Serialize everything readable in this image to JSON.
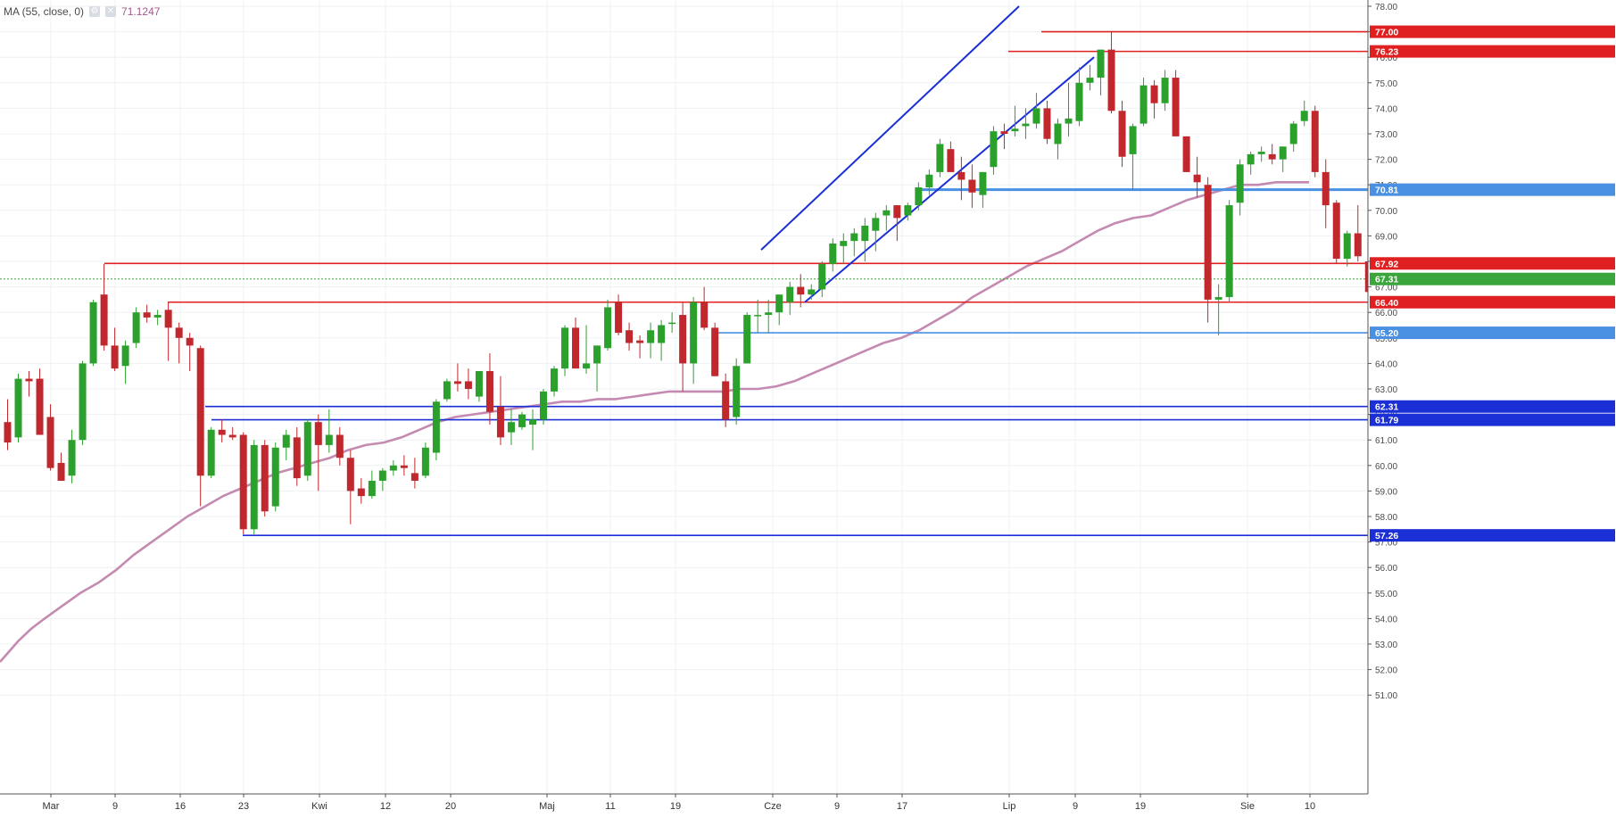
{
  "indicator": {
    "label": "MA (55, close, 0)",
    "value": "71.1247",
    "settings_icon": "gear-icon",
    "close_icon": "close-icon"
  },
  "colors": {
    "up": "#2ca02c",
    "down": "#c0282d",
    "ma": "#c48ab1",
    "red_level": "#e02020",
    "blue_level": "#1a2fd6",
    "light_blue": "#4a90e2",
    "grid": "#eef0f3",
    "dotted_price": "#3aa53a"
  },
  "chart_data": {
    "type": "candlestick",
    "title": "",
    "xlabel": "",
    "ylabel": "",
    "ylim": [
      51.0,
      78.5
    ],
    "y_ticks": [
      "51.00",
      "52.00",
      "53.00",
      "54.00",
      "55.00",
      "56.00",
      "57.00",
      "58.00",
      "59.00",
      "60.00",
      "61.00",
      "62.00",
      "63.00",
      "64.00",
      "65.00",
      "66.00",
      "67.00",
      "68.00",
      "69.00",
      "70.00",
      "71.00",
      "72.00",
      "73.00",
      "74.00",
      "75.00",
      "76.00",
      "77.00",
      "78.00"
    ],
    "x_ticks": [
      "Mar",
      "9",
      "16",
      "23",
      "Kwi",
      "12",
      "20",
      "Maj",
      "11",
      "19",
      "Cze",
      "9",
      "17",
      "Lip",
      "9",
      "19",
      "Sie",
      "10"
    ],
    "candles": [
      {
        "o": 61.7,
        "h": 62.6,
        "l": 60.6,
        "c": 60.9
      },
      {
        "o": 61.1,
        "h": 63.6,
        "l": 60.9,
        "c": 63.4
      },
      {
        "o": 63.4,
        "h": 63.7,
        "l": 62.7,
        "c": 63.3
      },
      {
        "o": 63.4,
        "h": 63.8,
        "l": 61.2,
        "c": 61.2
      },
      {
        "o": 61.9,
        "h": 62.4,
        "l": 59.8,
        "c": 59.9
      },
      {
        "o": 60.1,
        "h": 60.5,
        "l": 59.4,
        "c": 59.4
      },
      {
        "o": 59.6,
        "h": 61.4,
        "l": 59.3,
        "c": 61.0
      },
      {
        "o": 61.0,
        "h": 64.1,
        "l": 60.8,
        "c": 64.0
      },
      {
        "o": 64.0,
        "h": 66.5,
        "l": 63.9,
        "c": 66.4
      },
      {
        "o": 66.7,
        "h": 67.9,
        "l": 64.5,
        "c": 64.7
      },
      {
        "o": 64.7,
        "h": 65.4,
        "l": 63.7,
        "c": 63.8
      },
      {
        "o": 63.9,
        "h": 64.9,
        "l": 63.2,
        "c": 64.7
      },
      {
        "o": 64.8,
        "h": 66.2,
        "l": 64.6,
        "c": 66.0
      },
      {
        "o": 66.0,
        "h": 66.3,
        "l": 65.6,
        "c": 65.8
      },
      {
        "o": 65.8,
        "h": 66.1,
        "l": 65.5,
        "c": 65.9
      },
      {
        "o": 66.1,
        "h": 66.4,
        "l": 64.1,
        "c": 65.4
      },
      {
        "o": 65.4,
        "h": 65.6,
        "l": 64.0,
        "c": 65.0
      },
      {
        "o": 65.0,
        "h": 65.2,
        "l": 63.7,
        "c": 64.7
      },
      {
        "o": 64.6,
        "h": 64.7,
        "l": 58.4,
        "c": 59.6
      },
      {
        "o": 59.6,
        "h": 61.5,
        "l": 59.5,
        "c": 61.4
      },
      {
        "o": 61.4,
        "h": 61.8,
        "l": 60.9,
        "c": 61.2
      },
      {
        "o": 61.2,
        "h": 61.5,
        "l": 61.0,
        "c": 61.1
      },
      {
        "o": 61.2,
        "h": 61.3,
        "l": 57.3,
        "c": 57.5
      },
      {
        "o": 57.5,
        "h": 61.0,
        "l": 57.3,
        "c": 60.8
      },
      {
        "o": 60.8,
        "h": 61.0,
        "l": 58.0,
        "c": 58.2
      },
      {
        "o": 58.4,
        "h": 60.9,
        "l": 58.2,
        "c": 60.7
      },
      {
        "o": 60.7,
        "h": 61.4,
        "l": 60.2,
        "c": 61.2
      },
      {
        "o": 61.1,
        "h": 61.5,
        "l": 59.2,
        "c": 59.5
      },
      {
        "o": 59.6,
        "h": 61.8,
        "l": 59.4,
        "c": 61.7
      },
      {
        "o": 61.7,
        "h": 62.0,
        "l": 59.0,
        "c": 60.8
      },
      {
        "o": 60.8,
        "h": 62.2,
        "l": 60.5,
        "c": 61.2
      },
      {
        "o": 61.2,
        "h": 61.5,
        "l": 60.0,
        "c": 60.3
      },
      {
        "o": 60.3,
        "h": 60.6,
        "l": 57.7,
        "c": 59.0
      },
      {
        "o": 59.1,
        "h": 59.5,
        "l": 58.5,
        "c": 58.8
      },
      {
        "o": 58.8,
        "h": 59.8,
        "l": 58.7,
        "c": 59.4
      },
      {
        "o": 59.4,
        "h": 59.9,
        "l": 59.0,
        "c": 59.8
      },
      {
        "o": 59.8,
        "h": 60.2,
        "l": 59.6,
        "c": 60.0
      },
      {
        "o": 60.0,
        "h": 60.4,
        "l": 59.6,
        "c": 59.9
      },
      {
        "o": 59.7,
        "h": 60.3,
        "l": 59.1,
        "c": 59.4
      },
      {
        "o": 59.6,
        "h": 60.9,
        "l": 59.5,
        "c": 60.7
      },
      {
        "o": 60.5,
        "h": 62.6,
        "l": 60.2,
        "c": 62.5
      },
      {
        "o": 62.6,
        "h": 63.4,
        "l": 62.5,
        "c": 63.3
      },
      {
        "o": 63.3,
        "h": 64.0,
        "l": 62.9,
        "c": 63.2
      },
      {
        "o": 63.3,
        "h": 63.8,
        "l": 62.6,
        "c": 63.0
      },
      {
        "o": 62.7,
        "h": 63.7,
        "l": 62.5,
        "c": 63.7
      },
      {
        "o": 63.7,
        "h": 64.4,
        "l": 61.6,
        "c": 62.1
      },
      {
        "o": 62.3,
        "h": 63.5,
        "l": 60.8,
        "c": 61.1
      },
      {
        "o": 61.3,
        "h": 62.2,
        "l": 60.8,
        "c": 61.7
      },
      {
        "o": 61.5,
        "h": 62.1,
        "l": 61.4,
        "c": 62.0
      },
      {
        "o": 61.6,
        "h": 62.2,
        "l": 60.6,
        "c": 61.8
      },
      {
        "o": 61.8,
        "h": 63.0,
        "l": 61.6,
        "c": 62.9
      },
      {
        "o": 62.9,
        "h": 63.9,
        "l": 62.7,
        "c": 63.8
      },
      {
        "o": 63.8,
        "h": 65.5,
        "l": 63.5,
        "c": 65.4
      },
      {
        "o": 65.4,
        "h": 65.8,
        "l": 63.8,
        "c": 63.8
      },
      {
        "o": 63.8,
        "h": 65.5,
        "l": 63.6,
        "c": 64.0
      },
      {
        "o": 64.0,
        "h": 64.7,
        "l": 62.9,
        "c": 64.7
      },
      {
        "o": 64.6,
        "h": 66.5,
        "l": 64.5,
        "c": 66.2
      },
      {
        "o": 66.4,
        "h": 66.7,
        "l": 65.1,
        "c": 65.2
      },
      {
        "o": 65.3,
        "h": 65.6,
        "l": 64.5,
        "c": 64.8
      },
      {
        "o": 64.9,
        "h": 65.1,
        "l": 64.2,
        "c": 64.8
      },
      {
        "o": 64.8,
        "h": 65.6,
        "l": 64.2,
        "c": 65.3
      },
      {
        "o": 64.8,
        "h": 65.7,
        "l": 64.1,
        "c": 65.5
      },
      {
        "o": 65.6,
        "h": 66.0,
        "l": 65.2,
        "c": 65.6
      },
      {
        "o": 65.9,
        "h": 66.4,
        "l": 62.9,
        "c": 64.0
      },
      {
        "o": 64.0,
        "h": 66.6,
        "l": 63.2,
        "c": 66.4
      },
      {
        "o": 66.4,
        "h": 67.0,
        "l": 65.3,
        "c": 65.4
      },
      {
        "o": 65.4,
        "h": 65.6,
        "l": 63.5,
        "c": 63.5
      },
      {
        "o": 63.3,
        "h": 63.6,
        "l": 61.5,
        "c": 61.8
      },
      {
        "o": 61.9,
        "h": 64.2,
        "l": 61.6,
        "c": 63.9
      },
      {
        "o": 64.0,
        "h": 66.0,
        "l": 64.0,
        "c": 65.9
      },
      {
        "o": 65.9,
        "h": 66.5,
        "l": 65.2,
        "c": 65.9
      },
      {
        "o": 65.9,
        "h": 66.5,
        "l": 65.2,
        "c": 66.0
      },
      {
        "o": 66.0,
        "h": 66.6,
        "l": 65.5,
        "c": 66.7
      },
      {
        "o": 66.4,
        "h": 67.2,
        "l": 65.9,
        "c": 67.0
      },
      {
        "o": 67.0,
        "h": 67.5,
        "l": 66.2,
        "c": 66.7
      },
      {
        "o": 66.7,
        "h": 67.1,
        "l": 66.5,
        "c": 66.9
      },
      {
        "o": 66.9,
        "h": 68.0,
        "l": 66.6,
        "c": 67.9
      },
      {
        "o": 67.9,
        "h": 68.9,
        "l": 67.6,
        "c": 68.7
      },
      {
        "o": 68.6,
        "h": 69.1,
        "l": 67.9,
        "c": 68.8
      },
      {
        "o": 68.8,
        "h": 69.3,
        "l": 68.2,
        "c": 69.1
      },
      {
        "o": 68.8,
        "h": 69.7,
        "l": 68.0,
        "c": 69.4
      },
      {
        "o": 69.2,
        "h": 69.9,
        "l": 68.4,
        "c": 69.7
      },
      {
        "o": 69.8,
        "h": 70.2,
        "l": 69.2,
        "c": 70.0
      },
      {
        "o": 70.2,
        "h": 70.2,
        "l": 68.8,
        "c": 69.7
      },
      {
        "o": 69.8,
        "h": 70.3,
        "l": 69.6,
        "c": 70.2
      },
      {
        "o": 70.2,
        "h": 71.1,
        "l": 70.0,
        "c": 70.9
      },
      {
        "o": 70.9,
        "h": 71.6,
        "l": 70.6,
        "c": 71.4
      },
      {
        "o": 71.5,
        "h": 72.8,
        "l": 71.3,
        "c": 72.6
      },
      {
        "o": 72.4,
        "h": 72.7,
        "l": 71.6,
        "c": 71.5
      },
      {
        "o": 71.5,
        "h": 72.1,
        "l": 70.4,
        "c": 71.2
      },
      {
        "o": 71.2,
        "h": 71.8,
        "l": 70.1,
        "c": 70.7
      },
      {
        "o": 70.6,
        "h": 71.5,
        "l": 70.1,
        "c": 71.5
      },
      {
        "o": 71.7,
        "h": 73.3,
        "l": 71.4,
        "c": 73.1
      },
      {
        "o": 73.1,
        "h": 73.4,
        "l": 72.4,
        "c": 73.0
      },
      {
        "o": 73.1,
        "h": 74.1,
        "l": 72.9,
        "c": 73.2
      },
      {
        "o": 73.3,
        "h": 74.0,
        "l": 72.8,
        "c": 73.4
      },
      {
        "o": 73.4,
        "h": 74.6,
        "l": 73.2,
        "c": 74.0
      },
      {
        "o": 74.0,
        "h": 74.3,
        "l": 72.6,
        "c": 72.8
      },
      {
        "o": 72.6,
        "h": 73.6,
        "l": 72.0,
        "c": 73.4
      },
      {
        "o": 73.4,
        "h": 75.0,
        "l": 72.9,
        "c": 73.6
      },
      {
        "o": 73.5,
        "h": 75.6,
        "l": 73.3,
        "c": 75.0
      },
      {
        "o": 75.0,
        "h": 75.7,
        "l": 74.7,
        "c": 75.2
      },
      {
        "o": 75.2,
        "h": 76.3,
        "l": 74.5,
        "c": 76.3
      },
      {
        "o": 76.3,
        "h": 77.0,
        "l": 73.8,
        "c": 73.9
      },
      {
        "o": 73.9,
        "h": 74.3,
        "l": 71.7,
        "c": 72.1
      },
      {
        "o": 72.2,
        "h": 73.4,
        "l": 70.8,
        "c": 73.3
      },
      {
        "o": 73.4,
        "h": 75.2,
        "l": 73.3,
        "c": 74.9
      },
      {
        "o": 74.9,
        "h": 75.1,
        "l": 73.6,
        "c": 74.2
      },
      {
        "o": 74.2,
        "h": 75.5,
        "l": 73.9,
        "c": 75.2
      },
      {
        "o": 75.2,
        "h": 75.5,
        "l": 72.9,
        "c": 72.9
      },
      {
        "o": 72.9,
        "h": 72.9,
        "l": 71.5,
        "c": 71.5
      },
      {
        "o": 71.4,
        "h": 72.1,
        "l": 70.5,
        "c": 71.1
      },
      {
        "o": 71.0,
        "h": 71.3,
        "l": 65.6,
        "c": 66.5
      },
      {
        "o": 66.5,
        "h": 67.1,
        "l": 65.1,
        "c": 66.6
      },
      {
        "o": 66.6,
        "h": 70.4,
        "l": 66.4,
        "c": 70.2
      },
      {
        "o": 70.3,
        "h": 72.0,
        "l": 69.8,
        "c": 71.8
      },
      {
        "o": 71.8,
        "h": 72.3,
        "l": 71.4,
        "c": 72.2
      },
      {
        "o": 72.2,
        "h": 72.5,
        "l": 71.9,
        "c": 72.3
      },
      {
        "o": 72.2,
        "h": 72.6,
        "l": 71.8,
        "c": 72.0
      },
      {
        "o": 72.0,
        "h": 72.5,
        "l": 71.5,
        "c": 72.5
      },
      {
        "o": 72.6,
        "h": 73.5,
        "l": 72.3,
        "c": 73.4
      },
      {
        "o": 73.5,
        "h": 74.3,
        "l": 73.3,
        "c": 73.9
      },
      {
        "o": 73.9,
        "h": 74.1,
        "l": 71.3,
        "c": 71.5
      },
      {
        "o": 71.5,
        "h": 72.0,
        "l": 69.3,
        "c": 70.2
      },
      {
        "o": 70.3,
        "h": 70.4,
        "l": 67.9,
        "c": 68.1
      },
      {
        "o": 68.1,
        "h": 69.2,
        "l": 67.8,
        "c": 69.1
      },
      {
        "o": 69.1,
        "h": 70.2,
        "l": 68.0,
        "c": 68.2
      },
      {
        "o": 68.0,
        "h": 68.7,
        "l": 65.3,
        "c": 66.8
      },
      {
        "o": 66.8,
        "h": 67.5,
        "l": 66.6,
        "c": 67.3
      }
    ],
    "moving_average": [
      [
        0,
        52.3
      ],
      [
        10,
        52.7
      ],
      [
        20,
        53.1
      ],
      [
        35,
        53.6
      ],
      [
        50,
        54.0
      ],
      [
        70,
        54.5
      ],
      [
        90,
        55.0
      ],
      [
        110,
        55.4
      ],
      [
        130,
        55.9
      ],
      [
        150,
        56.5
      ],
      [
        170,
        57.0
      ],
      [
        190,
        57.5
      ],
      [
        210,
        58.0
      ],
      [
        230,
        58.4
      ],
      [
        250,
        58.8
      ],
      [
        270,
        59.1
      ],
      [
        290,
        59.4
      ],
      [
        310,
        59.7
      ],
      [
        330,
        59.9
      ],
      [
        350,
        60.1
      ],
      [
        370,
        60.3
      ],
      [
        390,
        60.6
      ],
      [
        410,
        60.8
      ],
      [
        430,
        60.9
      ],
      [
        450,
        61.1
      ],
      [
        470,
        61.4
      ],
      [
        490,
        61.7
      ],
      [
        510,
        61.9
      ],
      [
        530,
        62.0
      ],
      [
        550,
        62.1
      ],
      [
        570,
        62.2
      ],
      [
        590,
        62.3
      ],
      [
        610,
        62.4
      ],
      [
        630,
        62.5
      ],
      [
        650,
        62.5
      ],
      [
        670,
        62.6
      ],
      [
        690,
        62.6
      ],
      [
        710,
        62.7
      ],
      [
        730,
        62.8
      ],
      [
        750,
        62.9
      ],
      [
        770,
        62.9
      ],
      [
        790,
        62.9
      ],
      [
        810,
        62.9
      ],
      [
        830,
        63.0
      ],
      [
        850,
        63.0
      ],
      [
        870,
        63.1
      ],
      [
        890,
        63.3
      ],
      [
        910,
        63.6
      ],
      [
        930,
        63.9
      ],
      [
        950,
        64.2
      ],
      [
        970,
        64.5
      ],
      [
        990,
        64.8
      ],
      [
        1010,
        65.0
      ],
      [
        1030,
        65.3
      ],
      [
        1050,
        65.7
      ],
      [
        1070,
        66.1
      ],
      [
        1090,
        66.6
      ],
      [
        1110,
        67.0
      ],
      [
        1130,
        67.4
      ],
      [
        1150,
        67.8
      ],
      [
        1170,
        68.1
      ],
      [
        1190,
        68.4
      ],
      [
        1210,
        68.8
      ],
      [
        1230,
        69.2
      ],
      [
        1250,
        69.5
      ],
      [
        1270,
        69.7
      ],
      [
        1290,
        69.8
      ],
      [
        1310,
        70.1
      ],
      [
        1330,
        70.4
      ],
      [
        1350,
        70.6
      ],
      [
        1370,
        70.8
      ],
      [
        1390,
        71.0
      ],
      [
        1410,
        71.0
      ],
      [
        1430,
        71.1
      ],
      [
        1450,
        71.1
      ],
      [
        1467,
        71.1
      ]
    ],
    "horizontal_levels": [
      {
        "label": "77.00",
        "value": 77.0,
        "color": "red",
        "start": 1167
      },
      {
        "label": "76.23",
        "value": 76.23,
        "color": "red",
        "start": 1130
      },
      {
        "label": "70.81",
        "value": 70.81,
        "color": "light-blue",
        "start": 1033
      },
      {
        "label": "67.92",
        "value": 67.92,
        "color": "red",
        "start": 117
      },
      {
        "label": "67.31",
        "value": 67.31,
        "color": "green-dotted",
        "start": 0
      },
      {
        "label": "66.40",
        "value": 66.4,
        "color": "red",
        "start": 188
      },
      {
        "label": "65.20",
        "value": 65.2,
        "color": "light-blue",
        "start": 800
      },
      {
        "label": "62.31",
        "value": 62.31,
        "color": "blue",
        "start": 230
      },
      {
        "label": "61.79",
        "value": 61.79,
        "color": "blue",
        "start": 237
      },
      {
        "label": "57.26",
        "value": 57.26,
        "color": "blue",
        "start": 272
      }
    ],
    "trend_lines": [
      {
        "x1": 853,
        "y1": 68.45,
        "x2": 1142,
        "y2": 78.0
      },
      {
        "x1": 902,
        "y1": 66.4,
        "x2": 1226,
        "y2": 76.0
      }
    ],
    "grid": true
  }
}
